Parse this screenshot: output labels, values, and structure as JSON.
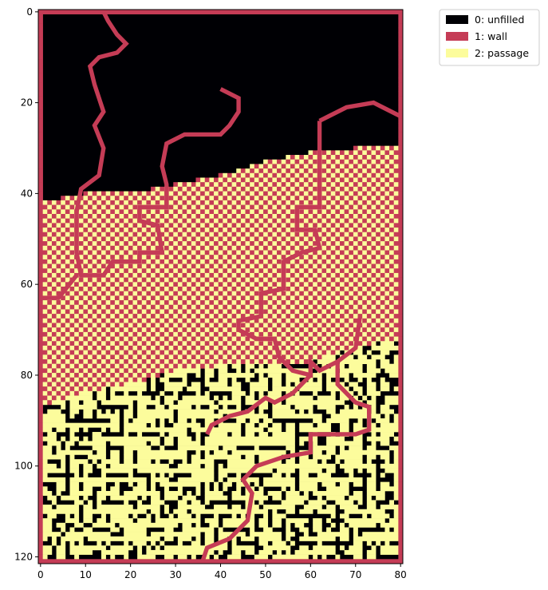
{
  "chart_data": {
    "type": "heatmap",
    "title": "",
    "xlabel": "",
    "ylabel": "",
    "cols": 81,
    "rows": 122,
    "xlim": [
      -0.5,
      80.5
    ],
    "ylim": [
      121.5,
      -0.5
    ],
    "xticks": [
      0,
      10,
      20,
      30,
      40,
      50,
      60,
      70,
      80
    ],
    "yticks": [
      0,
      20,
      40,
      60,
      80,
      100,
      120
    ],
    "grid": false,
    "legend_position": "outside-top-right",
    "legend": [
      {
        "value": 0,
        "label": "0: unfilled",
        "color": "#000004"
      },
      {
        "value": 1,
        "label": "1: wall",
        "color": "#c53c56"
      },
      {
        "value": 2,
        "label": "2: passage",
        "color": "#fcfc9c"
      }
    ],
    "regions": {
      "unfilled_boundary_description": "upper area (rows ~0-40) mostly unfilled; checkerboard wall/passage band below; maze of walls and passages in lower area (rows ~75-121)",
      "checkerboard_top_by_col": [
        [
          0,
          42
        ],
        [
          10,
          40
        ],
        [
          20,
          40
        ],
        [
          30,
          38
        ],
        [
          40,
          36
        ],
        [
          50,
          33
        ],
        [
          60,
          31
        ],
        [
          70,
          30
        ],
        [
          80,
          29
        ]
      ],
      "maze_top_by_col": [
        [
          0,
          87
        ],
        [
          10,
          84
        ],
        [
          20,
          82
        ],
        [
          30,
          79
        ],
        [
          40,
          78
        ],
        [
          50,
          78
        ],
        [
          60,
          77
        ],
        [
          70,
          74
        ],
        [
          80,
          72
        ]
      ]
    },
    "wall_paths": [
      [
        [
          14,
          0
        ],
        [
          15,
          2
        ],
        [
          17,
          5
        ],
        [
          19,
          7
        ],
        [
          17,
          9
        ],
        [
          13,
          10
        ],
        [
          11,
          12
        ],
        [
          12,
          16
        ],
        [
          14,
          22
        ],
        [
          12,
          25
        ],
        [
          14,
          30
        ],
        [
          13,
          36
        ],
        [
          9,
          39
        ],
        [
          8,
          44
        ],
        [
          8,
          53
        ],
        [
          9,
          58
        ],
        [
          14,
          58
        ],
        [
          16,
          55
        ],
        [
          22,
          55
        ],
        [
          22,
          53
        ],
        [
          27,
          53
        ],
        [
          26,
          47
        ],
        [
          22,
          46
        ],
        [
          22,
          43
        ],
        [
          28,
          43
        ],
        [
          28,
          38
        ],
        [
          27,
          34
        ],
        [
          28,
          29
        ],
        [
          32,
          27
        ],
        [
          40,
          27
        ],
        [
          42,
          25
        ],
        [
          44,
          22
        ],
        [
          44,
          19
        ],
        [
          40,
          17
        ]
      ],
      [
        [
          8,
          58
        ],
        [
          4,
          63
        ],
        [
          0,
          63
        ]
      ],
      [
        [
          62,
          24
        ],
        [
          64,
          23
        ],
        [
          68,
          21
        ],
        [
          74,
          20
        ],
        [
          76,
          21
        ],
        [
          80,
          23
        ]
      ],
      [
        [
          62,
          24
        ],
        [
          62,
          31
        ],
        [
          62,
          43
        ],
        [
          57,
          43
        ],
        [
          57,
          48
        ],
        [
          61,
          48
        ],
        [
          62,
          52
        ],
        [
          58,
          53
        ],
        [
          54,
          55
        ],
        [
          54,
          61
        ],
        [
          49,
          62
        ],
        [
          49,
          67
        ],
        [
          44,
          68
        ],
        [
          44,
          70
        ],
        [
          48,
          72
        ],
        [
          52,
          72
        ],
        [
          53,
          76
        ],
        [
          56,
          79
        ],
        [
          60,
          80
        ],
        [
          60,
          77
        ],
        [
          62,
          79
        ],
        [
          66,
          77
        ],
        [
          70,
          74
        ],
        [
          71,
          67
        ]
      ],
      [
        [
          60,
          80
        ],
        [
          56,
          84
        ],
        [
          52,
          86
        ],
        [
          50,
          85
        ],
        [
          46,
          88
        ],
        [
          42,
          89
        ],
        [
          38,
          91
        ],
        [
          37,
          93
        ]
      ],
      [
        [
          66,
          77
        ],
        [
          66,
          82
        ],
        [
          70,
          86
        ],
        [
          73,
          87
        ],
        [
          73,
          92
        ],
        [
          70,
          93
        ],
        [
          68,
          93
        ],
        [
          60,
          93
        ],
        [
          60,
          97
        ],
        [
          54,
          98
        ],
        [
          48,
          100
        ],
        [
          45,
          103
        ],
        [
          47,
          106
        ],
        [
          46,
          112
        ],
        [
          42,
          116
        ],
        [
          37,
          118
        ],
        [
          36,
          121
        ]
      ]
    ]
  }
}
